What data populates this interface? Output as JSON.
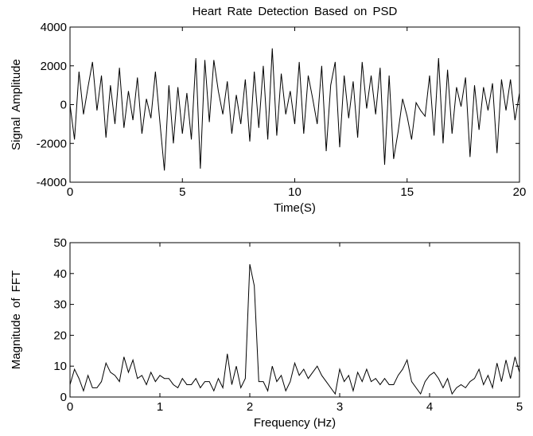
{
  "chart_data": [
    {
      "type": "line",
      "title": "Heart Rate Detection Based on PSD",
      "x_label": "Time(S)",
      "y_label": "Signal Amplitude",
      "color": "#000000",
      "x": [
        0,
        0.2,
        0.4,
        0.6,
        0.8,
        1.0,
        1.2,
        1.4,
        1.6,
        1.8,
        2.0,
        2.2,
        2.4,
        2.6,
        2.8,
        3.0,
        3.2,
        3.4,
        3.6,
        3.8,
        4.0,
        4.2,
        4.4,
        4.6,
        4.8,
        5.0,
        5.2,
        5.4,
        5.6,
        5.8,
        6.0,
        6.2,
        6.4,
        6.6,
        6.8,
        7.0,
        7.2,
        7.4,
        7.6,
        7.8,
        8.0,
        8.2,
        8.4,
        8.6,
        8.8,
        9.0,
        9.2,
        9.4,
        9.6,
        9.8,
        10.0,
        10.2,
        10.4,
        10.6,
        10.8,
        11.0,
        11.2,
        11.4,
        11.6,
        11.8,
        12.0,
        12.2,
        12.4,
        12.6,
        12.8,
        13.0,
        13.2,
        13.4,
        13.6,
        13.8,
        14.0,
        14.2,
        14.4,
        14.6,
        14.8,
        15.0,
        15.2,
        15.4,
        15.6,
        15.8,
        16.0,
        16.2,
        16.4,
        16.6,
        16.8,
        17.0,
        17.2,
        17.4,
        17.6,
        17.8,
        18.0,
        18.2,
        18.4,
        18.6,
        18.8,
        19.0,
        19.2,
        19.4,
        19.6,
        19.8,
        20.0
      ],
      "values": [
        0,
        -1800,
        1700,
        -500,
        900,
        2200,
        -300,
        1500,
        -1700,
        1000,
        -1000,
        1900,
        -1200,
        700,
        -800,
        1400,
        -1500,
        300,
        -700,
        1700,
        -900,
        -3400,
        1000,
        -2000,
        900,
        -1500,
        600,
        -1800,
        2400,
        -3300,
        2300,
        -900,
        2300,
        700,
        -500,
        1200,
        -1500,
        500,
        -1000,
        1300,
        -1900,
        1700,
        -1200,
        2000,
        -1800,
        2900,
        -1600,
        1600,
        -500,
        700,
        -1000,
        2200,
        -1500,
        1500,
        300,
        -1000,
        2000,
        -2400,
        1000,
        2200,
        -2200,
        1500,
        -700,
        1200,
        -1700,
        2200,
        -200,
        1500,
        -500,
        1900,
        -3100,
        1500,
        -2800,
        -1400,
        300,
        -600,
        -1800,
        100,
        -300,
        -600,
        1500,
        -1600,
        2400,
        -2000,
        1800,
        -1500,
        900,
        -100,
        1400,
        -2700,
        1000,
        -1300,
        900,
        -300,
        1100,
        -2500,
        1300,
        -300,
        1300,
        -800,
        600
      ],
      "xlim": [
        0,
        20
      ],
      "xticks": [
        0,
        5,
        10,
        15,
        20
      ],
      "ylim": [
        -4000,
        4000
      ],
      "yticks": [
        -4000,
        -2000,
        0,
        2000,
        4000
      ]
    },
    {
      "type": "line",
      "x_label": "Frequency (Hz)",
      "y_label": "Magnitude of FFT",
      "color": "#000000",
      "x": [
        0,
        0.05,
        0.1,
        0.15,
        0.2,
        0.25,
        0.3,
        0.35,
        0.4,
        0.45,
        0.5,
        0.55,
        0.6,
        0.65,
        0.7,
        0.75,
        0.8,
        0.85,
        0.9,
        0.95,
        1.0,
        1.05,
        1.1,
        1.15,
        1.2,
        1.25,
        1.3,
        1.35,
        1.4,
        1.45,
        1.5,
        1.55,
        1.6,
        1.65,
        1.7,
        1.75,
        1.8,
        1.85,
        1.9,
        1.95,
        2.0,
        2.05,
        2.1,
        2.15,
        2.2,
        2.25,
        2.3,
        2.35,
        2.4,
        2.45,
        2.5,
        2.55,
        2.6,
        2.65,
        2.7,
        2.75,
        2.8,
        2.85,
        2.9,
        2.95,
        3.0,
        3.05,
        3.1,
        3.15,
        3.2,
        3.25,
        3.3,
        3.35,
        3.4,
        3.45,
        3.5,
        3.55,
        3.6,
        3.65,
        3.7,
        3.75,
        3.8,
        3.85,
        3.9,
        3.95,
        4.0,
        4.05,
        4.1,
        4.15,
        4.2,
        4.25,
        4.3,
        4.35,
        4.4,
        4.45,
        4.5,
        4.55,
        4.6,
        4.65,
        4.7,
        4.75,
        4.8,
        4.85,
        4.9,
        4.95,
        5.0
      ],
      "values": [
        4,
        9,
        6,
        2,
        7,
        3,
        3,
        5,
        11,
        8,
        7,
        5,
        13,
        8,
        12,
        6,
        7,
        4,
        8,
        5,
        7,
        6,
        6,
        4,
        3,
        6,
        4,
        4,
        6,
        3,
        5,
        5,
        2,
        6,
        3,
        14,
        4,
        10,
        3,
        6,
        43,
        36,
        5,
        5,
        2,
        10,
        5,
        7,
        2,
        5,
        11,
        7,
        9,
        6,
        8,
        10,
        7,
        5,
        3,
        1,
        9,
        5,
        7,
        2,
        8,
        5,
        9,
        5,
        6,
        4,
        6,
        4,
        4,
        7,
        9,
        12,
        5,
        3,
        1,
        5,
        7,
        8,
        6,
        3,
        6,
        1,
        3,
        4,
        3,
        5,
        6,
        9,
        4,
        7,
        3,
        11,
        5,
        12,
        6,
        13,
        8
      ],
      "xlim": [
        0,
        5
      ],
      "xticks": [
        0,
        1,
        2,
        3,
        4,
        5
      ],
      "ylim": [
        0,
        50
      ],
      "yticks": [
        0,
        10,
        20,
        30,
        40,
        50
      ]
    }
  ]
}
